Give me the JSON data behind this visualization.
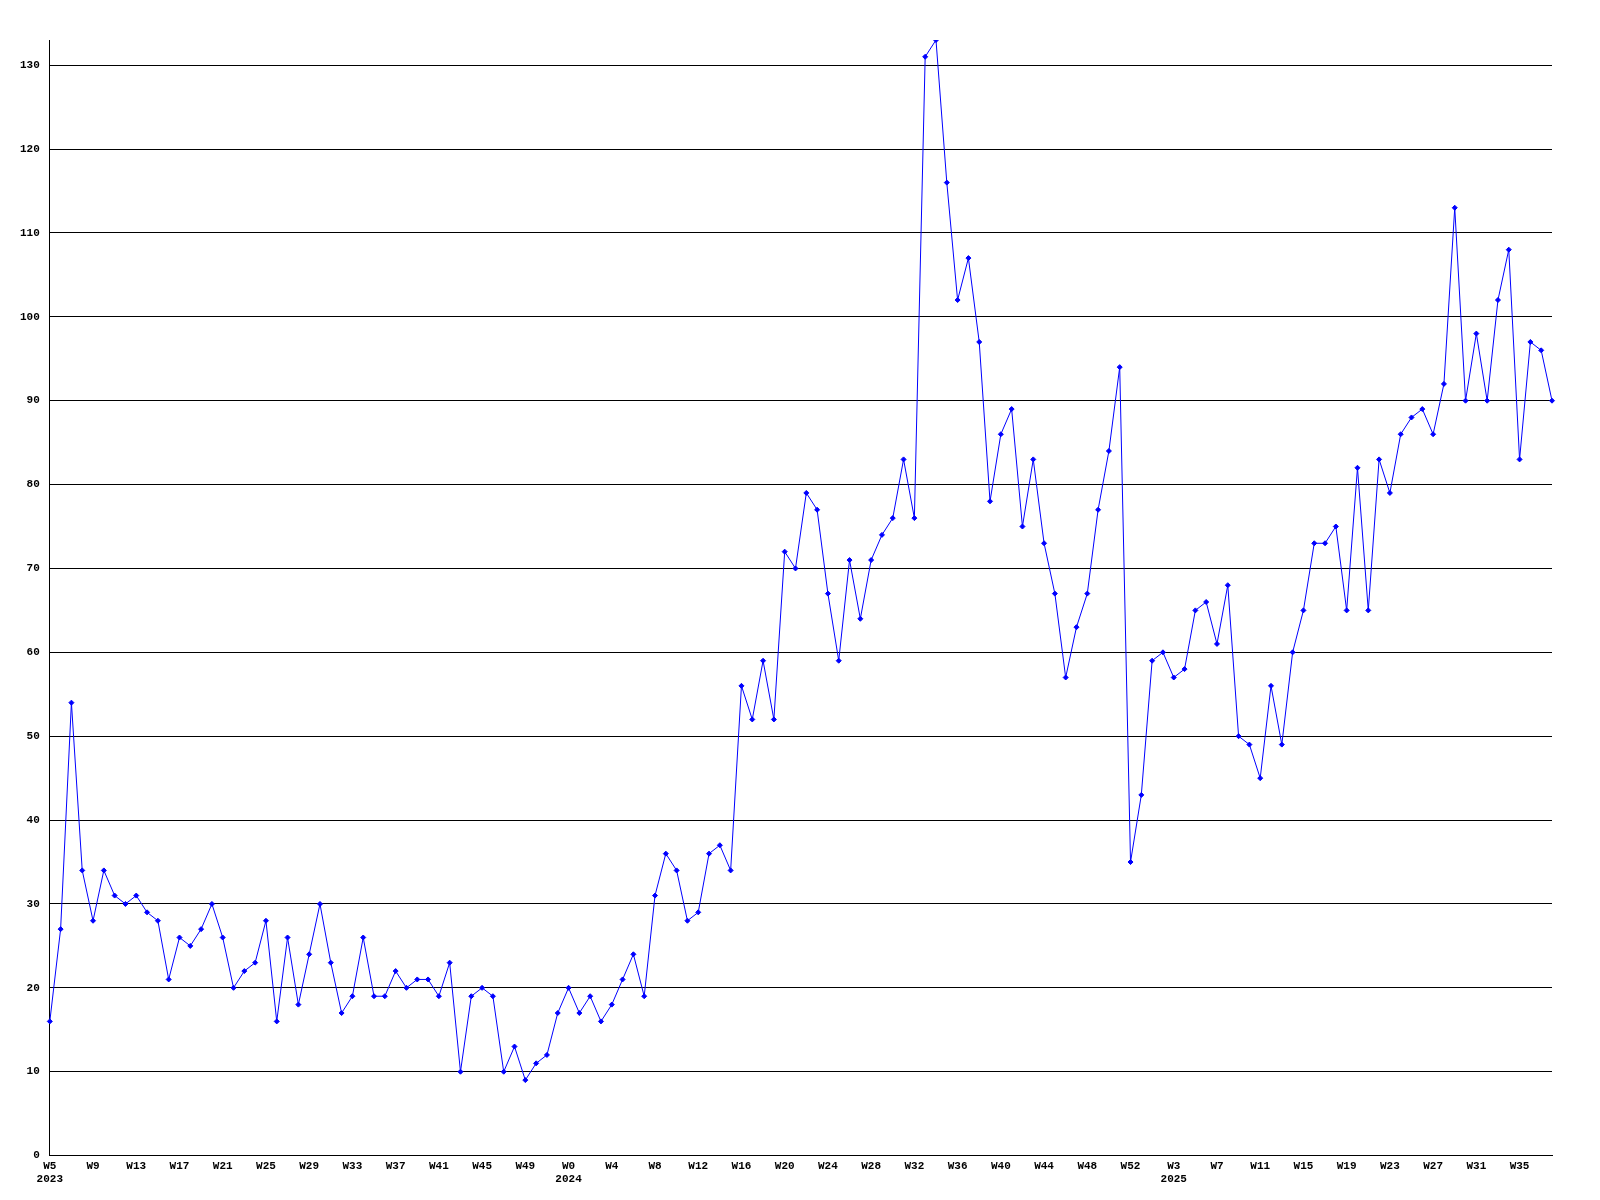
{
  "chart_data": {
    "type": "line",
    "categories": [
      "W5\n2023",
      null,
      null,
      null,
      "W9",
      null,
      null,
      null,
      "W13",
      null,
      null,
      null,
      "W17",
      null,
      null,
      null,
      "W21",
      null,
      null,
      null,
      "W25",
      null,
      null,
      null,
      "W29",
      null,
      null,
      null,
      "W33",
      null,
      null,
      null,
      "W37",
      null,
      null,
      null,
      "W41",
      null,
      null,
      null,
      "W45",
      null,
      null,
      null,
      "W49",
      null,
      null,
      null,
      "W0\n2024",
      null,
      null,
      null,
      "W4",
      null,
      null,
      null,
      "W8",
      null,
      null,
      null,
      "W12",
      null,
      null,
      null,
      "W16",
      null,
      null,
      null,
      "W20",
      null,
      null,
      null,
      "W24",
      null,
      null,
      null,
      "W28",
      null,
      null,
      null,
      "W32",
      null,
      null,
      null,
      "W36",
      null,
      null,
      null,
      "W40",
      null,
      null,
      null,
      "W44",
      null,
      null,
      null,
      "W48",
      null,
      null,
      null,
      "W52",
      null,
      null,
      null,
      "W3\n2025",
      null,
      null,
      null,
      "W7",
      null,
      null,
      null,
      "W11",
      null,
      null,
      null,
      "W15",
      null,
      null,
      null,
      "W19",
      null,
      null,
      null,
      "W23",
      null,
      null,
      null,
      "W27",
      null,
      null,
      null,
      "W31",
      null,
      null,
      null,
      "W35",
      null,
      null,
      null
    ],
    "series": [
      {
        "color": "#0000ff",
        "values": [
          16,
          27,
          54,
          34,
          28,
          34,
          31,
          30,
          31,
          29,
          28,
          21,
          26,
          25,
          27,
          30,
          26,
          20,
          22,
          23,
          28,
          16,
          26,
          18,
          24,
          30,
          23,
          17,
          19,
          26,
          19,
          19,
          22,
          20,
          21,
          21,
          19,
          23,
          10,
          19,
          20,
          19,
          10,
          13,
          9,
          11,
          12,
          17,
          20,
          17,
          19,
          16,
          18,
          21,
          24,
          19,
          31,
          36,
          34,
          28,
          29,
          36,
          37,
          34,
          56,
          52,
          59,
          52,
          72,
          70,
          79,
          77,
          67,
          59,
          71,
          64,
          71,
          74,
          76,
          83,
          76,
          131,
          133,
          116,
          102,
          107,
          97,
          78,
          86,
          89,
          75,
          83,
          73,
          67,
          57,
          63,
          67,
          77,
          84,
          94,
          35,
          43,
          59,
          60,
          57,
          58,
          65,
          66,
          61,
          68,
          50,
          49,
          45,
          56,
          49,
          60,
          65,
          73,
          73,
          75,
          65,
          82,
          65,
          83,
          79,
          86,
          88,
          89,
          86,
          92,
          113,
          90,
          98,
          90,
          102,
          108,
          83,
          97,
          96,
          90
        ]
      }
    ],
    "ylim": [
      0,
      133
    ],
    "yticks": [
      0,
      10,
      20,
      30,
      40,
      50,
      60,
      70,
      80,
      90,
      100,
      110,
      120,
      130
    ],
    "grid": "y",
    "legend": false,
    "marker": "diamond",
    "line_style": "solid"
  }
}
